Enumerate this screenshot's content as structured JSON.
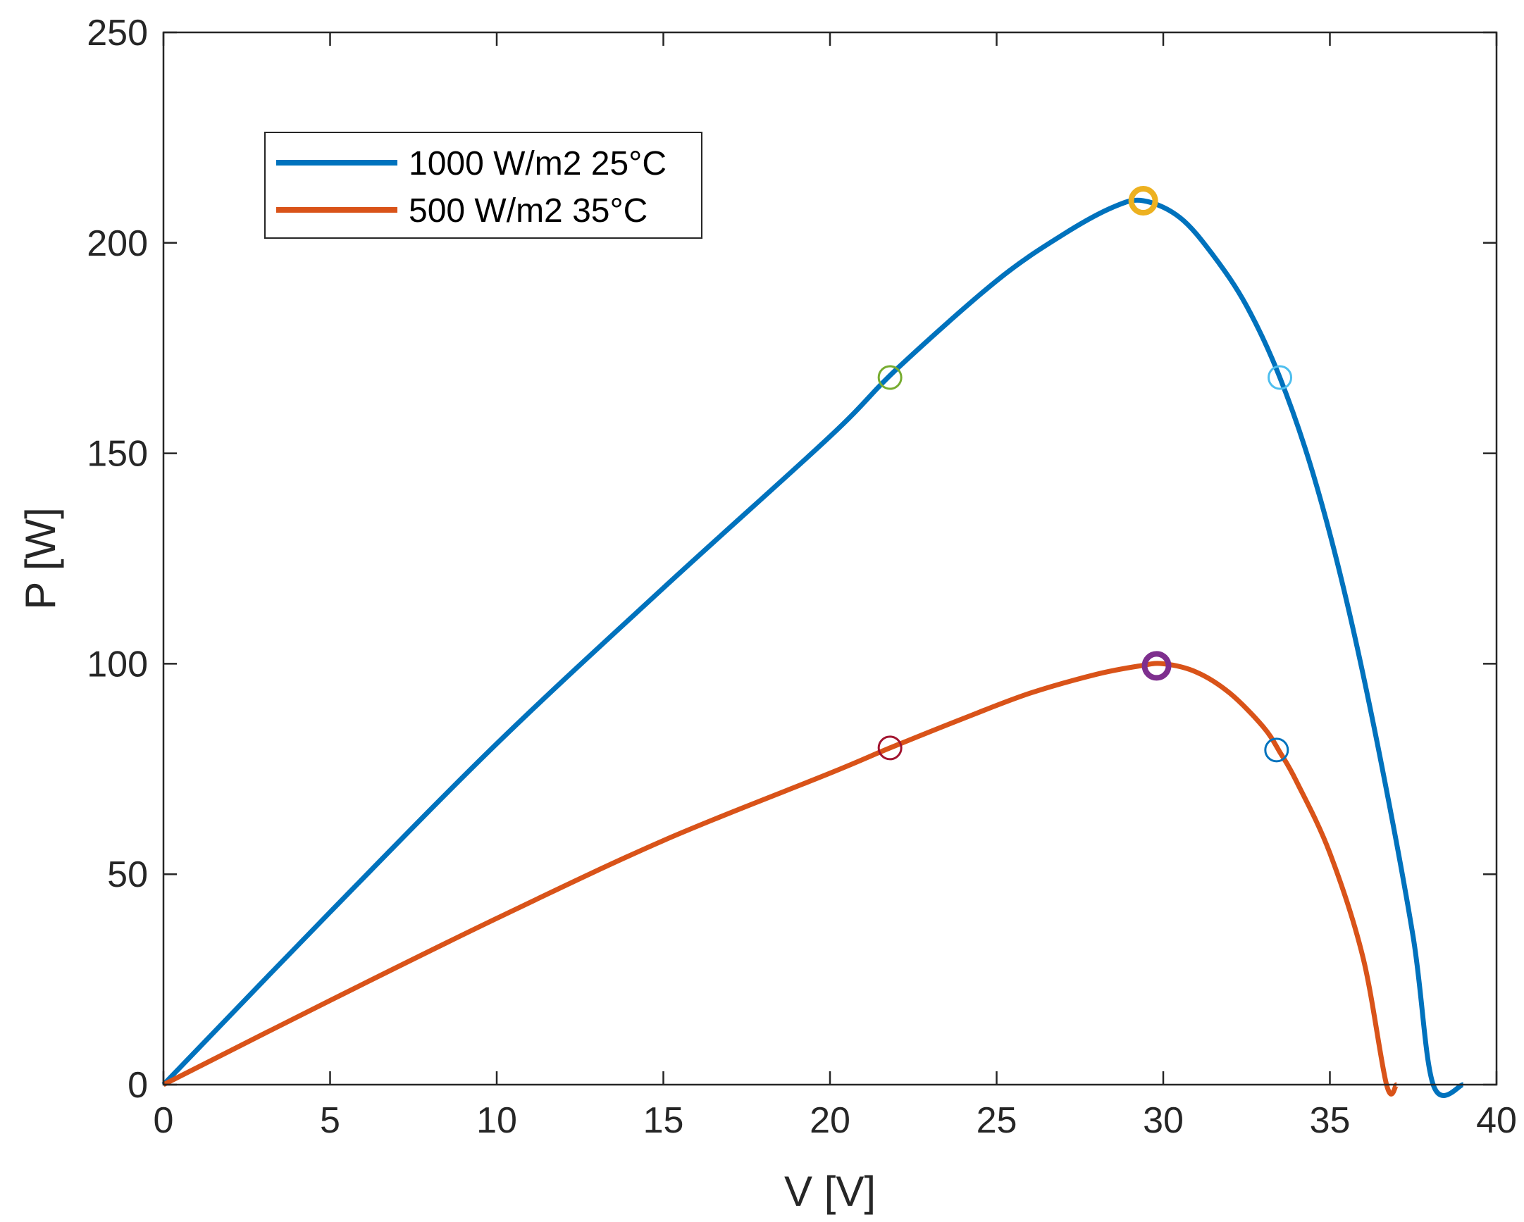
{
  "chart_data": {
    "type": "line",
    "xlabel": "V [V]",
    "ylabel": "P [W]",
    "xlim": [
      0,
      40
    ],
    "ylim": [
      0,
      250
    ],
    "xticks": [
      0,
      5,
      10,
      15,
      20,
      25,
      30,
      35,
      40
    ],
    "yticks": [
      0,
      50,
      100,
      150,
      200,
      250
    ],
    "grid": false,
    "legend_position": "top-left",
    "series": [
      {
        "name": "1000 W/m2 25°C",
        "color": "#0072BD",
        "points": [
          [
            0,
            0
          ],
          [
            5,
            41
          ],
          [
            10,
            81
          ],
          [
            15,
            118
          ],
          [
            20,
            154
          ],
          [
            22,
            170
          ],
          [
            25,
            191
          ],
          [
            27,
            202
          ],
          [
            28.5,
            208.5
          ],
          [
            29.4,
            210
          ],
          [
            30.5,
            206
          ],
          [
            31.5,
            197
          ],
          [
            32.5,
            185
          ],
          [
            33.5,
            168
          ],
          [
            34.5,
            145
          ],
          [
            35.5,
            115
          ],
          [
            36.5,
            78
          ],
          [
            37.5,
            35
          ],
          [
            38.1,
            0
          ],
          [
            39,
            0
          ]
        ]
      },
      {
        "name": "500 W/m2 35°C",
        "color": "#D95319",
        "points": [
          [
            0,
            0
          ],
          [
            5,
            20
          ],
          [
            10,
            39.5
          ],
          [
            15,
            58
          ],
          [
            20,
            74
          ],
          [
            21.8,
            80
          ],
          [
            24,
            87
          ],
          [
            26,
            93
          ],
          [
            28,
            97.5
          ],
          [
            29.3,
            99.5
          ],
          [
            30,
            100
          ],
          [
            31,
            98
          ],
          [
            32,
            93
          ],
          [
            33,
            85
          ],
          [
            33.5,
            79
          ],
          [
            34,
            72
          ],
          [
            35,
            55
          ],
          [
            36,
            30
          ],
          [
            36.7,
            0
          ],
          [
            37,
            0
          ]
        ]
      }
    ],
    "markers": [
      {
        "name": "mpp-1000",
        "x": 29.4,
        "y": 210,
        "color": "#EDB120",
        "bold": true
      },
      {
        "name": "mpp-500",
        "x": 29.8,
        "y": 99.5,
        "color": "#7E2F8E",
        "bold": true
      },
      {
        "name": "green-1000",
        "x": 21.8,
        "y": 168,
        "color": "#77AC30",
        "bold": false
      },
      {
        "name": "cyan-1000",
        "x": 33.5,
        "y": 168,
        "color": "#4DBEEE",
        "bold": false
      },
      {
        "name": "red-500",
        "x": 21.8,
        "y": 80,
        "color": "#A2142F",
        "bold": false
      },
      {
        "name": "blue-500",
        "x": 33.4,
        "y": 79.5,
        "color": "#0072BD",
        "bold": false
      }
    ]
  }
}
